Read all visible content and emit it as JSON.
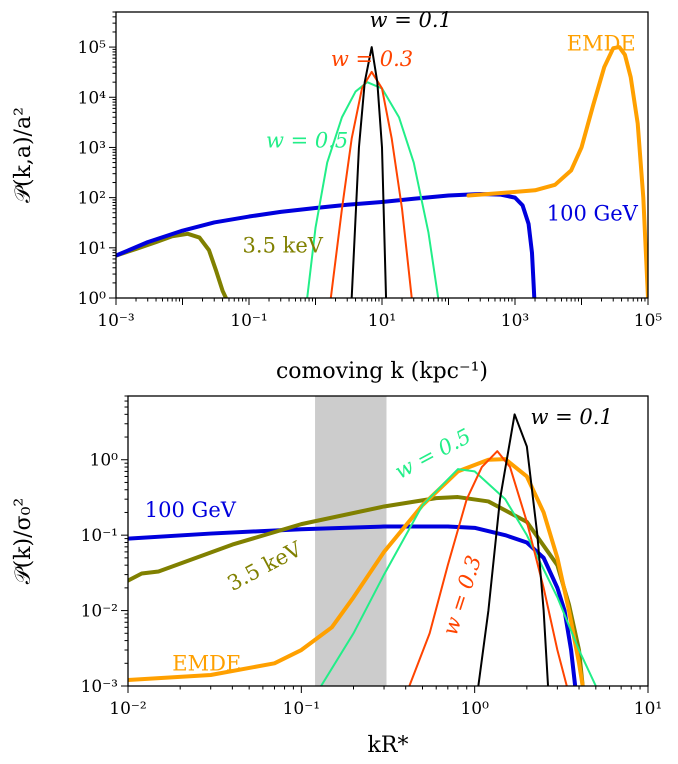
{
  "chart_data": [
    {
      "type": "line",
      "panel": "top",
      "xscale": "log",
      "yscale": "log",
      "xlim": [
        0.001,
        100000
      ],
      "ylim": [
        1,
        500000
      ],
      "xlabel": "comoving k (kpc⁻¹)",
      "ylabel": "𝒫(k,a)/a²",
      "xticks": [
        "10⁻³",
        "10⁻¹",
        "10¹",
        "10³",
        "10⁵"
      ],
      "xtick_values": [
        0.001,
        0.1,
        10,
        1000,
        100000
      ],
      "yticks": [
        "10⁰",
        "10¹",
        "10²",
        "10³",
        "10⁴",
        "10⁵"
      ],
      "ytick_values": [
        1,
        10,
        100,
        1000,
        10000,
        100000
      ],
      "series": [
        {
          "name": "3.5 keV",
          "color": "#808000",
          "width": 4,
          "points": [
            [
              0.001,
              7
            ],
            [
              0.002,
              9.5
            ],
            [
              0.004,
              13
            ],
            [
              0.007,
              17
            ],
            [
              0.012,
              19
            ],
            [
              0.018,
              16
            ],
            [
              0.025,
              9
            ],
            [
              0.032,
              3.5
            ],
            [
              0.04,
              1.4
            ],
            [
              0.045,
              1
            ]
          ]
        },
        {
          "name": "100 GeV",
          "color": "#0000dd",
          "width": 4,
          "points": [
            [
              0.001,
              7
            ],
            [
              0.003,
              13
            ],
            [
              0.01,
              22
            ],
            [
              0.03,
              32
            ],
            [
              0.1,
              42
            ],
            [
              0.3,
              52
            ],
            [
              1,
              62
            ],
            [
              3,
              72
            ],
            [
              10,
              82
            ],
            [
              30,
              95
            ],
            [
              100,
              110
            ],
            [
              300,
              118
            ],
            [
              600,
              115
            ],
            [
              1000,
              100
            ],
            [
              1300,
              70
            ],
            [
              1600,
              30
            ],
            [
              1800,
              8
            ],
            [
              1900,
              2
            ],
            [
              1950,
              1
            ]
          ]
        },
        {
          "name": "w = 0.5",
          "color": "#22ee88",
          "width": 2,
          "points": [
            [
              0.75,
              1
            ],
            [
              1,
              25
            ],
            [
              1.5,
              500
            ],
            [
              2.5,
              4000
            ],
            [
              4,
              13000
            ],
            [
              6,
              20000
            ],
            [
              10,
              15000
            ],
            [
              18,
              4000
            ],
            [
              30,
              500
            ],
            [
              50,
              20
            ],
            [
              70,
              1
            ]
          ]
        },
        {
          "name": "w = 0.3",
          "color": "#ff4400",
          "width": 2,
          "points": [
            [
              1.7,
              1
            ],
            [
              2.5,
              60
            ],
            [
              3.5,
              1500
            ],
            [
              5,
              15000
            ],
            [
              7,
              32000
            ],
            [
              10,
              15000
            ],
            [
              14,
              1500
            ],
            [
              20,
              60
            ],
            [
              28,
              1
            ]
          ]
        },
        {
          "name": "w = 0.1",
          "color": "#000000",
          "width": 2,
          "points": [
            [
              3.5,
              1
            ],
            [
              4.5,
              1000
            ],
            [
              5.5,
              20000
            ],
            [
              7,
              100000
            ],
            [
              8.5,
              20000
            ],
            [
              10,
              1000
            ],
            [
              11.5,
              1
            ]
          ]
        },
        {
          "name": "EMDE",
          "color": "#ffa000",
          "width": 4,
          "points": [
            [
              200,
              110
            ],
            [
              700,
              125
            ],
            [
              2000,
              140
            ],
            [
              4000,
              180
            ],
            [
              7000,
              350
            ],
            [
              10000,
              1000
            ],
            [
              15000,
              7000
            ],
            [
              22000,
              40000
            ],
            [
              30000,
              95000
            ],
            [
              37000,
              100000
            ],
            [
              45000,
              70000
            ],
            [
              55000,
              25000
            ],
            [
              70000,
              3000
            ],
            [
              85000,
              100
            ],
            [
              100000,
              1
            ]
          ]
        }
      ],
      "labels": [
        {
          "text": "w = 0.1",
          "x": 6.5,
          "y": 250000,
          "color": "#000000",
          "italic": true
        },
        {
          "text": "w = 0.3",
          "x": 1.7,
          "y": 42000,
          "color": "#ff4400",
          "italic": true
        },
        {
          "text": "w = 0.5",
          "x": 0.18,
          "y": 1000,
          "color": "#22ee88",
          "italic": true
        },
        {
          "text": "EMDE",
          "x": 6000,
          "y": 85000,
          "color": "#ffa000",
          "italic": false
        },
        {
          "text": "100 GeV",
          "x": 3000,
          "y": 35,
          "color": "#0000dd",
          "italic": false
        },
        {
          "text": "3.5 keV",
          "x": 0.08,
          "y": 8,
          "color": "#808000",
          "italic": false
        }
      ]
    },
    {
      "type": "line",
      "panel": "bottom",
      "xscale": "log",
      "yscale": "log",
      "xlim": [
        0.01,
        10
      ],
      "ylim": [
        0.001,
        7
      ],
      "xlabel": "kR*",
      "ylabel": "𝒫(k)/σ₀²",
      "xticks": [
        "10⁻²",
        "10⁻¹",
        "10⁰",
        "10¹"
      ],
      "xtick_values": [
        0.01,
        0.1,
        1,
        10
      ],
      "yticks": [
        "10⁻³",
        "10⁻²",
        "10⁻¹",
        "10⁰"
      ],
      "ytick_values": [
        0.001,
        0.01,
        0.1,
        1
      ],
      "shaded_band": {
        "x": [
          0.12,
          0.31
        ],
        "color": "#cccccc"
      },
      "series": [
        {
          "name": "100 GeV",
          "color": "#0000dd",
          "width": 4,
          "points": [
            [
              0.01,
              0.09
            ],
            [
              0.03,
              0.105
            ],
            [
              0.1,
              0.12
            ],
            [
              0.3,
              0.13
            ],
            [
              0.7,
              0.13
            ],
            [
              1,
              0.125
            ],
            [
              1.5,
              0.1
            ],
            [
              2,
              0.08
            ],
            [
              2.5,
              0.05
            ],
            [
              3,
              0.02
            ],
            [
              3.3,
              0.01
            ],
            [
              3.6,
              0.003
            ],
            [
              3.8,
              0.001
            ]
          ]
        },
        {
          "name": "3.5 keV",
          "color": "#808000",
          "width": 4,
          "points": [
            [
              0.01,
              0.025
            ],
            [
              0.012,
              0.031
            ],
            [
              0.015,
              0.033
            ],
            [
              0.02,
              0.042
            ],
            [
              0.04,
              0.075
            ],
            [
              0.1,
              0.14
            ],
            [
              0.3,
              0.24
            ],
            [
              0.6,
              0.31
            ],
            [
              0.8,
              0.32
            ],
            [
              1.2,
              0.28
            ],
            [
              2,
              0.15
            ],
            [
              3,
              0.04
            ],
            [
              3.5,
              0.012
            ],
            [
              4,
              0.003
            ],
            [
              4.2,
              0.001
            ]
          ]
        },
        {
          "name": "EMDE",
          "color": "#ffa000",
          "width": 4,
          "points": [
            [
              0.01,
              0.0012
            ],
            [
              0.03,
              0.0014
            ],
            [
              0.07,
              0.002
            ],
            [
              0.1,
              0.003
            ],
            [
              0.15,
              0.006
            ],
            [
              0.2,
              0.015
            ],
            [
              0.3,
              0.06
            ],
            [
              0.5,
              0.25
            ],
            [
              0.8,
              0.7
            ],
            [
              1.2,
              1.0
            ],
            [
              1.5,
              1.02
            ],
            [
              2,
              0.6
            ],
            [
              2.5,
              0.2
            ],
            [
              3,
              0.05
            ],
            [
              3.5,
              0.01
            ],
            [
              4,
              0.002
            ],
            [
              4.2,
              0.001
            ]
          ]
        },
        {
          "name": "w = 0.5",
          "color": "#22ee88",
          "width": 2,
          "points": [
            [
              0.13,
              0.001
            ],
            [
              0.2,
              0.005
            ],
            [
              0.3,
              0.03
            ],
            [
              0.5,
              0.25
            ],
            [
              0.8,
              0.75
            ],
            [
              1,
              0.7
            ],
            [
              1.5,
              0.3
            ],
            [
              2,
              0.1
            ],
            [
              3,
              0.015
            ],
            [
              4,
              0.003
            ],
            [
              5,
              0.001
            ]
          ]
        },
        {
          "name": "w = 0.3",
          "color": "#ff4400",
          "width": 2,
          "points": [
            [
              0.42,
              0.001
            ],
            [
              0.55,
              0.005
            ],
            [
              0.7,
              0.04
            ],
            [
              0.9,
              0.3
            ],
            [
              1.1,
              0.8
            ],
            [
              1.35,
              1.3
            ],
            [
              1.6,
              0.8
            ],
            [
              2,
              0.15
            ],
            [
              2.5,
              0.02
            ],
            [
              3,
              0.003
            ],
            [
              3.4,
              0.001
            ]
          ]
        },
        {
          "name": "w = 0.1",
          "color": "#000000",
          "width": 2,
          "points": [
            [
              1.05,
              0.001
            ],
            [
              1.2,
              0.01
            ],
            [
              1.4,
              0.3
            ],
            [
              1.7,
              4
            ],
            [
              2,
              1.5
            ],
            [
              2.3,
              0.1
            ],
            [
              2.5,
              0.01
            ],
            [
              2.65,
              0.001
            ]
          ]
        }
      ],
      "labels": [
        {
          "text": "w = 0.1",
          "x": 2.1,
          "y": 3.0,
          "color": "#000000",
          "italic": true,
          "rotate": 0
        },
        {
          "text": "w = 0.5",
          "x": 0.37,
          "y": 0.55,
          "color": "#22ee88",
          "italic": true,
          "rotate": -28
        },
        {
          "text": "w = 0.3",
          "x": 0.78,
          "y": 0.0045,
          "color": "#ff4400",
          "italic": true,
          "rotate": -72
        },
        {
          "text": "100 GeV",
          "x": 0.0125,
          "y": 0.175,
          "color": "#0000dd",
          "italic": false,
          "rotate": 0
        },
        {
          "text": "3.5 keV",
          "x": 0.04,
          "y": 0.018,
          "color": "#808000",
          "italic": false,
          "rotate": -28
        },
        {
          "text": "EMDE",
          "x": 0.018,
          "y": 0.0016,
          "color": "#ffa000",
          "italic": false,
          "rotate": 0
        }
      ]
    }
  ]
}
